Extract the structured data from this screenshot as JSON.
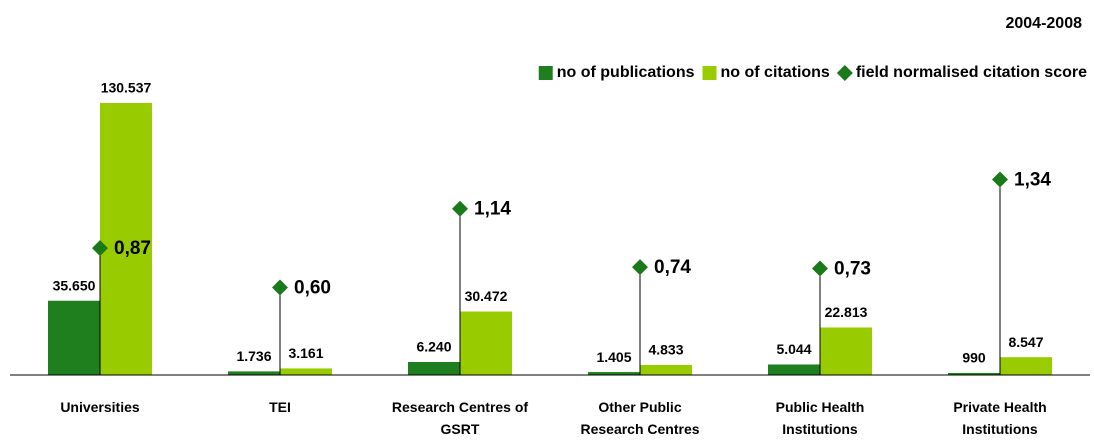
{
  "chart_data": {
    "type": "bar",
    "title": "2004-2008",
    "categories": [
      "Universities",
      "TEI",
      "Research Centres of\nGSRT",
      "Other Public\nResearch Centres",
      "Public Health\nInstitutions",
      "Private Health\nInstitutions"
    ],
    "series": [
      {
        "name": "no of publications",
        "color": "#1f7f1f",
        "type": "bar",
        "values": [
          35650,
          1736,
          6240,
          1405,
          5044,
          990
        ],
        "value_labels": [
          "35.650",
          "1.736",
          "6.240",
          "1.405",
          "5.044",
          "990"
        ]
      },
      {
        "name": "no of citations",
        "color": "#99cc00",
        "type": "bar",
        "values": [
          130537,
          3161,
          30472,
          4833,
          22813,
          8547
        ],
        "value_labels": [
          "130.537",
          "3.161",
          "30.472",
          "4.833",
          "22.813",
          "8.547"
        ]
      },
      {
        "name": "field normalised citation score",
        "color": "#1a7a1a",
        "type": "diamond",
        "axis": "y2",
        "values": [
          0.87,
          0.6,
          1.14,
          0.74,
          0.73,
          1.34
        ],
        "value_labels": [
          "0,87",
          "0,60",
          "1,14",
          "0,74",
          "0,73",
          "1,34"
        ]
      }
    ],
    "ylim": [
      0,
      140000
    ],
    "y2lim": [
      0,
      2
    ],
    "legend": "top-right"
  }
}
